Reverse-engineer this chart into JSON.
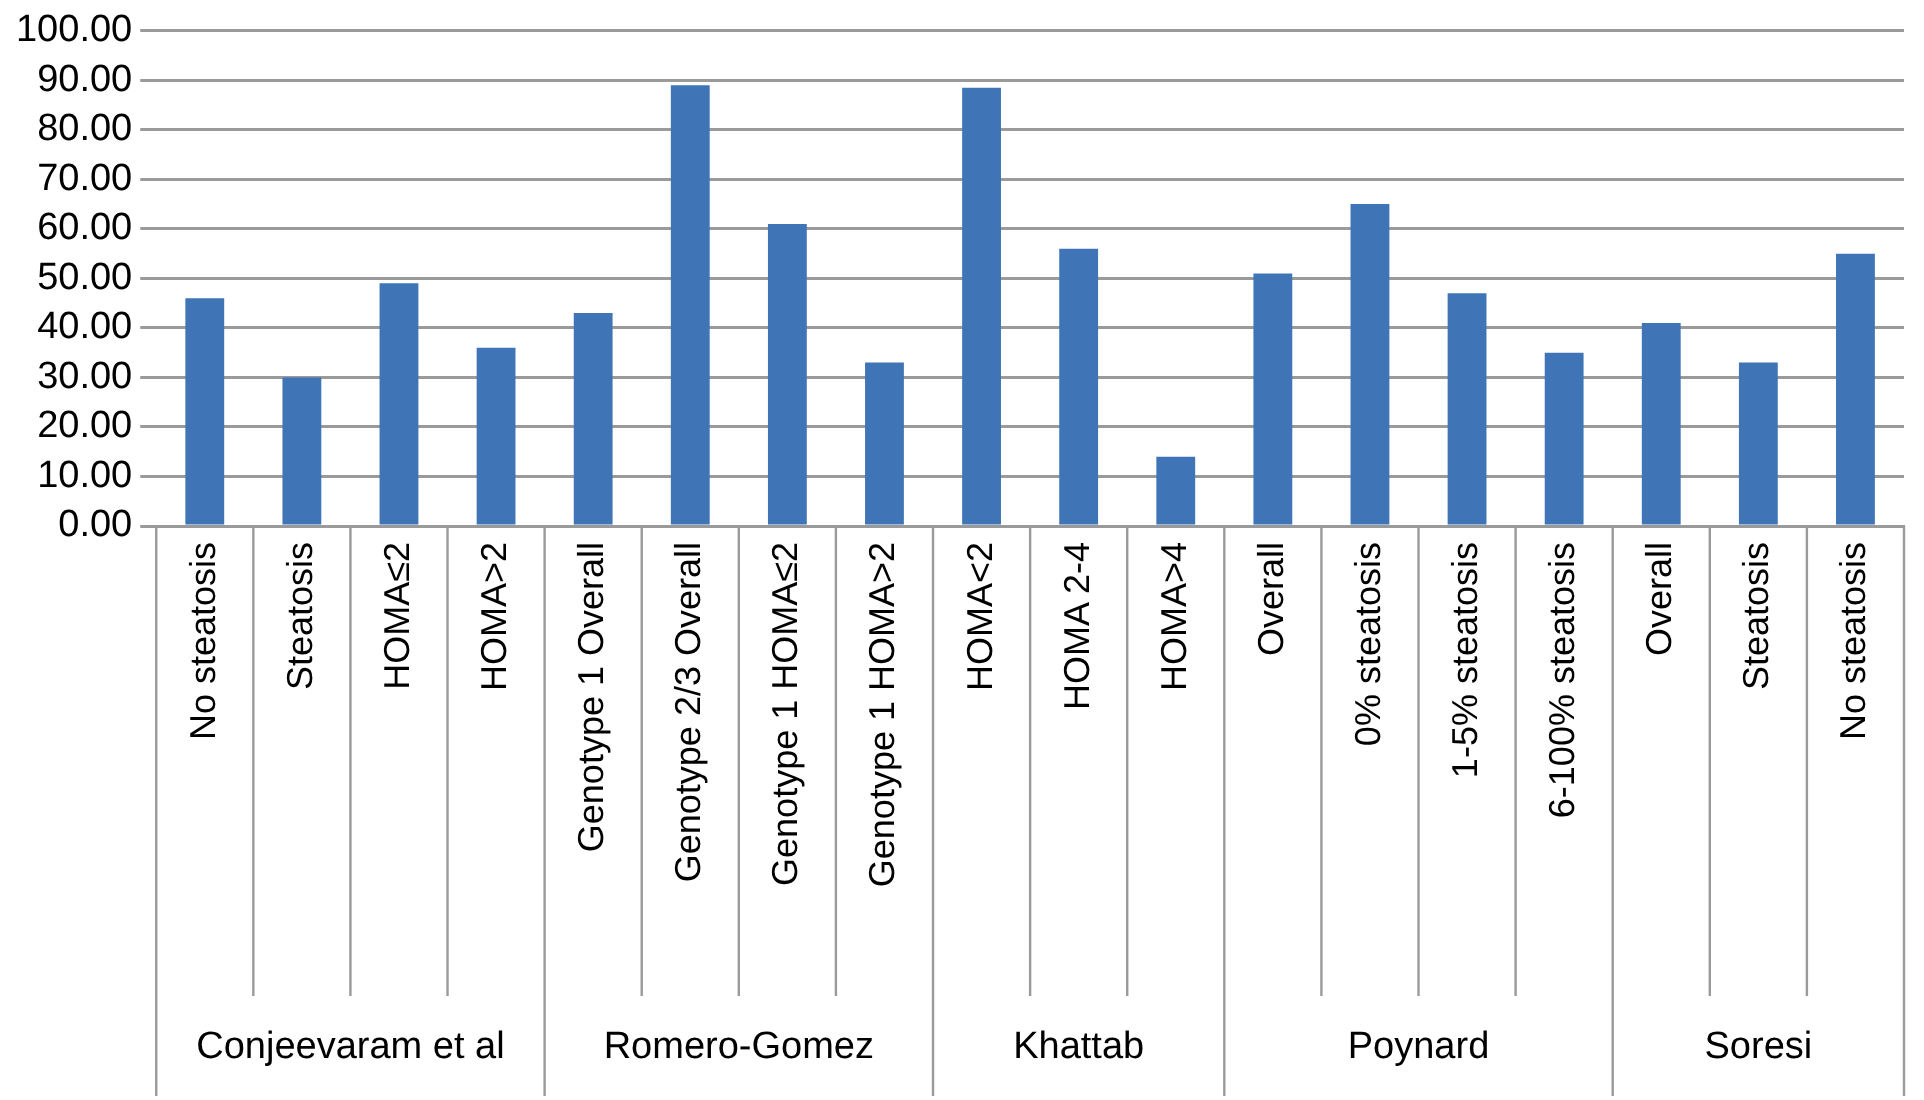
{
  "chart_data": {
    "type": "bar",
    "categories": [
      "No steatosis",
      "Steatosis",
      "HOMA≤2",
      "HOMA>2",
      "Genotype 1 Overall",
      "Genotype 2/3 Overall",
      "Genotype 1 HOMA≤2",
      "Genotype 1 HOMA>2",
      "HOMA<2",
      "HOMA 2-4",
      "HOMA>4",
      "Overall",
      "0% steatosis",
      "1-5% steatosis",
      "6-100% steatosis",
      "Overall",
      "Steatosis",
      "No steatosis"
    ],
    "values": [
      46,
      30,
      49,
      36,
      43,
      89,
      61,
      33,
      88.5,
      56,
      14,
      51,
      65,
      47,
      35,
      41,
      33,
      55
    ],
    "color": "#3f75b7",
    "ylim": [
      0,
      100
    ],
    "yticks": [
      {
        "value": 0,
        "label": "0.00"
      },
      {
        "value": 10,
        "label": "10.00"
      },
      {
        "value": 20,
        "label": "20.00"
      },
      {
        "value": 30,
        "label": "30.00"
      },
      {
        "value": 40,
        "label": "40.00"
      },
      {
        "value": 50,
        "label": "50.00"
      },
      {
        "value": 60,
        "label": "60.00"
      },
      {
        "value": 70,
        "label": "70.00"
      },
      {
        "value": 80,
        "label": "80.00"
      },
      {
        "value": 90,
        "label": "90.00"
      },
      {
        "value": 100,
        "label": "100.00"
      }
    ],
    "grid": "y",
    "annotations": [
      "Conjeevaram et al",
      "Romero-Gomez",
      "Khattab",
      "Poynard",
      "Soresi"
    ]
  }
}
